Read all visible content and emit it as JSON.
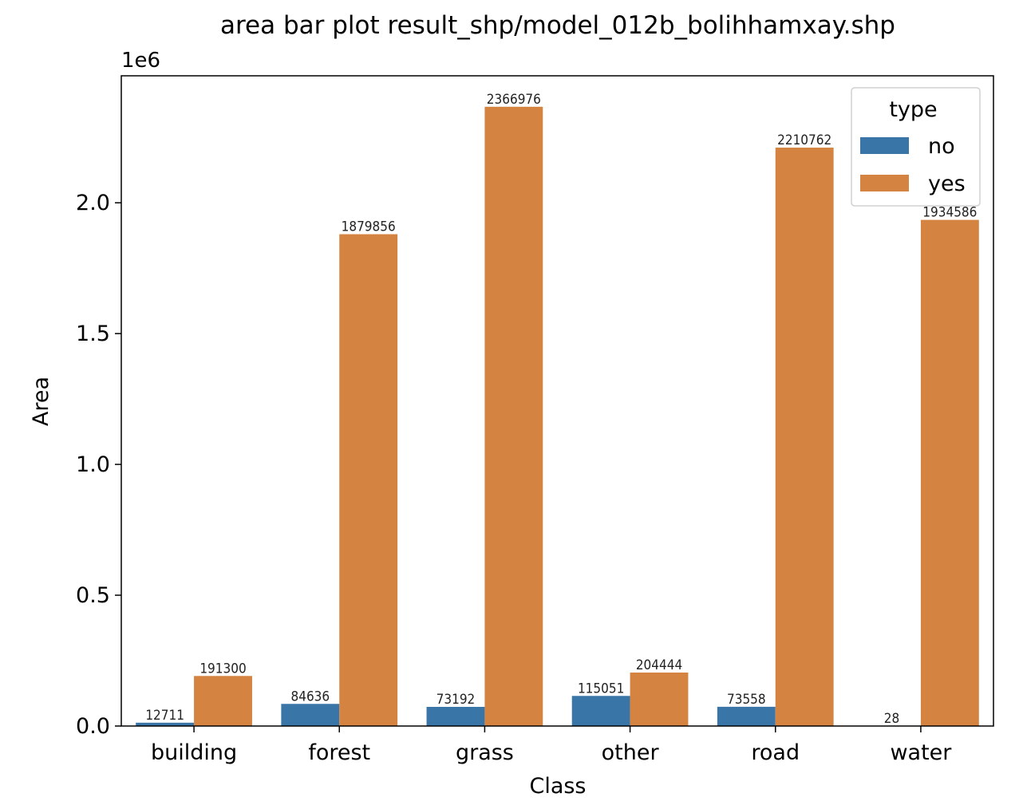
{
  "chart_data": {
    "type": "bar",
    "title": "area bar plot result_shp/model_012b_bolihhamxay.shp",
    "xlabel": "Class",
    "ylabel": "Area",
    "y_offset_label": "1e6",
    "categories": [
      "building",
      "forest",
      "grass",
      "other",
      "road",
      "water"
    ],
    "series": [
      {
        "name": "no",
        "color": "#3a75a8",
        "values": [
          12711,
          84636,
          73192,
          115051,
          73558,
          28
        ],
        "labels": [
          "12711",
          "84636",
          "73192",
          "115051",
          "73558",
          "28"
        ]
      },
      {
        "name": "yes",
        "color": "#d58340",
        "values": [
          191300,
          1879856,
          2366976,
          204444,
          2210762,
          1934586
        ],
        "labels": [
          "191300",
          "1879856",
          "2366976",
          "204444",
          "2210762",
          "1934586"
        ]
      }
    ],
    "ylim": [
      0,
      2485325
    ],
    "yticks": [
      0,
      500000,
      1000000,
      1500000,
      2000000
    ],
    "ytick_labels": [
      "0.0",
      "0.5",
      "1.0",
      "1.5",
      "2.0"
    ],
    "grid": false,
    "legend": {
      "title": "type",
      "position": "top-right"
    }
  }
}
